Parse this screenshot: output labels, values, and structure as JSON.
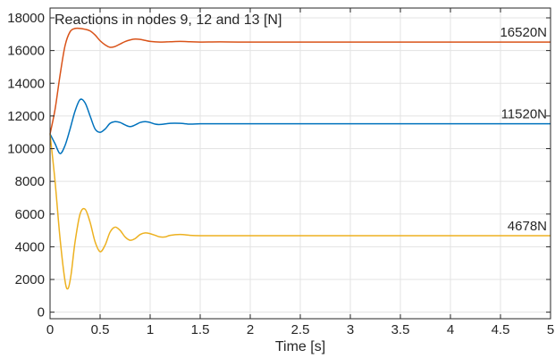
{
  "chart_data": {
    "type": "line",
    "title": "Reactions in nodes 9, 12 and 13 [N]",
    "xlabel": "Time [s]",
    "ylabel": "",
    "xlim": [
      0,
      5
    ],
    "ylim": [
      -400,
      18600
    ],
    "grid": true,
    "x_ticks": [
      0,
      0.5,
      1,
      1.5,
      2,
      2.5,
      3,
      3.5,
      4,
      4.5,
      5
    ],
    "x_tick_labels": [
      "0",
      "0.5",
      "1",
      "1.5",
      "2",
      "2.5",
      "3",
      "3.5",
      "4",
      "4.5",
      "5"
    ],
    "y_ticks": [
      0,
      2000,
      4000,
      6000,
      8000,
      10000,
      12000,
      14000,
      16000,
      18000
    ],
    "y_tick_labels": [
      "0",
      "2000",
      "4000",
      "6000",
      "8000",
      "10000",
      "12000",
      "14000",
      "16000",
      "18000"
    ],
    "series": [
      {
        "color": "#D95319",
        "end_label": "16520N",
        "x": [
          0,
          0.05,
          0.1,
          0.15,
          0.2,
          0.25,
          0.3,
          0.35,
          0.4,
          0.45,
          0.5,
          0.55,
          0.6,
          0.65,
          0.7,
          0.75,
          0.8,
          0.85,
          0.9,
          0.95,
          1.0,
          1.1,
          1.2,
          1.3,
          1.4,
          1.5,
          1.7,
          2.0,
          3.0,
          4.0,
          5.0
        ],
        "y": [
          10900,
          12400,
          14500,
          16300,
          17150,
          17350,
          17350,
          17300,
          17200,
          16950,
          16600,
          16350,
          16200,
          16250,
          16400,
          16550,
          16650,
          16700,
          16680,
          16620,
          16560,
          16520,
          16540,
          16560,
          16540,
          16520,
          16530,
          16520,
          16520,
          16520,
          16520
        ]
      },
      {
        "color": "#0072BD",
        "end_label": "11520N",
        "x": [
          0,
          0.05,
          0.1,
          0.15,
          0.2,
          0.25,
          0.3,
          0.35,
          0.4,
          0.45,
          0.5,
          0.55,
          0.6,
          0.65,
          0.7,
          0.75,
          0.8,
          0.85,
          0.9,
          0.95,
          1.0,
          1.05,
          1.1,
          1.2,
          1.3,
          1.4,
          1.5,
          1.7,
          2.0,
          3.0,
          4.0,
          5.0
        ],
        "y": [
          10900,
          10300,
          9700,
          10200,
          11200,
          12300,
          13000,
          12800,
          12000,
          11200,
          11000,
          11200,
          11550,
          11650,
          11600,
          11450,
          11350,
          11450,
          11600,
          11650,
          11600,
          11500,
          11480,
          11550,
          11550,
          11500,
          11520,
          11520,
          11520,
          11520,
          11520,
          11520
        ]
      },
      {
        "color": "#EDB120",
        "end_label": "4678N",
        "x": [
          0,
          0.05,
          0.1,
          0.15,
          0.18,
          0.21,
          0.25,
          0.3,
          0.35,
          0.4,
          0.45,
          0.5,
          0.55,
          0.6,
          0.65,
          0.7,
          0.75,
          0.8,
          0.85,
          0.9,
          0.95,
          1.0,
          1.05,
          1.1,
          1.15,
          1.2,
          1.3,
          1.4,
          1.5,
          1.7,
          2.0,
          3.0,
          4.0,
          5.0
        ],
        "y": [
          10900,
          8000,
          4500,
          1900,
          1450,
          2300,
          4300,
          6000,
          6300,
          5500,
          4300,
          3700,
          4100,
          4900,
          5200,
          5000,
          4600,
          4400,
          4500,
          4750,
          4850,
          4800,
          4700,
          4600,
          4600,
          4700,
          4750,
          4700,
          4680,
          4680,
          4678,
          4678,
          4678,
          4678
        ]
      }
    ]
  }
}
